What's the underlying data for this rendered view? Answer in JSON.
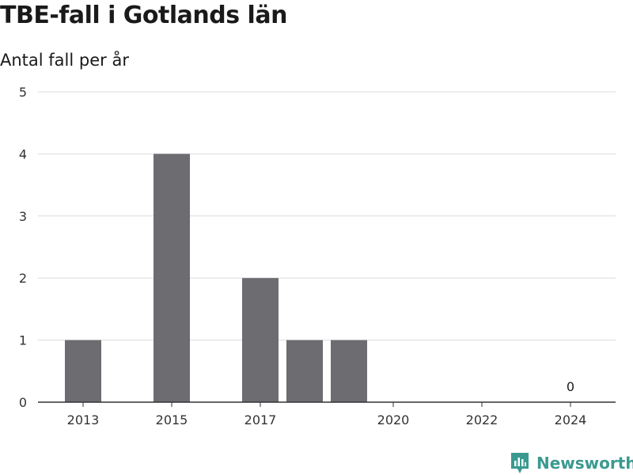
{
  "header": {
    "title": "TBE-fall i Gotlands län",
    "subtitle": "Antal fall per år"
  },
  "brand": {
    "name": "Newsworthy",
    "icon": "newsworthy-logo-icon",
    "color": "#3a9a8f"
  },
  "chart_data": {
    "type": "bar",
    "title": "TBE-fall i Gotlands län",
    "subtitle": "Antal fall per år",
    "xlabel": "",
    "ylabel": "",
    "categories": [
      "2013",
      "2014",
      "2015",
      "2016",
      "2017",
      "2018",
      "2019",
      "2020",
      "2021",
      "2022",
      "2023",
      "2024"
    ],
    "values": [
      1,
      0,
      4,
      0,
      2,
      1,
      1,
      0,
      0,
      0,
      0,
      0
    ],
    "x_tick_labels": [
      "2013",
      "2015",
      "2017",
      "2020",
      "2022",
      "2024"
    ],
    "y_ticks": [
      0,
      1,
      2,
      3,
      4,
      5
    ],
    "ylim": [
      0,
      5
    ],
    "data_labels": [
      {
        "category": "2024",
        "text": "0"
      }
    ],
    "grid": true,
    "bar_color": "#6d6c71"
  }
}
